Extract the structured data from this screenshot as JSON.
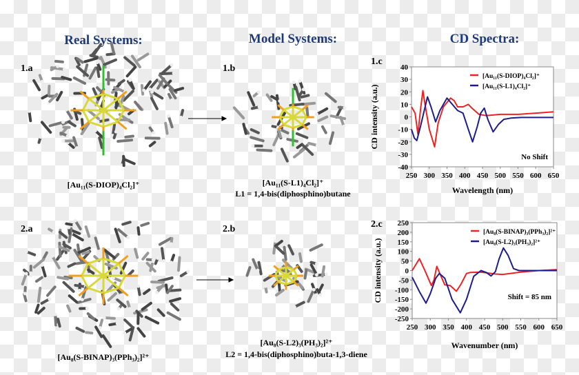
{
  "headings": {
    "real": "Real Systems:",
    "model": "Model Systems:",
    "cd": "CD Spectra:"
  },
  "panels": {
    "p1a": {
      "label": "1.a",
      "caption": "[Au₁₁(S-DIOP)₄Cl₂]⁺"
    },
    "p1b": {
      "label": "1.b",
      "caption": "[Au₁₁(S-L1)₄Cl₂]⁺",
      "caption2": "L1 = 1,4-bis(diphosphino)butane"
    },
    "p1c": {
      "label": "1.c"
    },
    "p2a": {
      "label": "2.a",
      "caption": "[Au₈(S-BINAP)₃(PPh₃)₂]²⁺"
    },
    "p2b": {
      "label": "2.b",
      "caption": "[Au₈(S-L2)₃(PH₃)₂]²⁺",
      "caption2": "L2 = 1,4-bis(diphosphino)buta-1,3-diene"
    },
    "p2c": {
      "label": "2.c"
    }
  },
  "colors": {
    "heading": "#1f3a78",
    "red_series": "#ee2222",
    "blue_series": "#1c1c8c",
    "gold": "#d8d838",
    "phosphorus": "#f0a020",
    "chlorine": "#30c030"
  },
  "chart_data": [
    {
      "type": "line",
      "xlabel": "Wavelength (nm)",
      "ylabel": "CD intensity (a.u.)",
      "xlim": [
        250,
        650
      ],
      "ylim": [
        -40,
        40
      ],
      "xticks": [
        250,
        300,
        350,
        400,
        450,
        500,
        550,
        600,
        650
      ],
      "yticks": [
        -40,
        -30,
        -20,
        -10,
        0,
        10,
        20,
        30,
        40
      ],
      "annotation": "No Shift",
      "legend": "top-right",
      "series": [
        {
          "name": "[Au₁₁(S-DIOP)₄Cl₂]⁺",
          "color": "#ee2222",
          "x": [
            250,
            260,
            268,
            275,
            282,
            288,
            300,
            315,
            325,
            340,
            360,
            370,
            380,
            395,
            410,
            420,
            440,
            460,
            500,
            550,
            600,
            650
          ],
          "y": [
            8,
            3,
            -14,
            5,
            21,
            10,
            -10,
            -24,
            -5,
            8,
            15,
            13,
            8,
            8,
            10,
            7,
            2,
            1,
            2,
            2,
            3,
            4
          ]
        },
        {
          "name": "[Au₁₁(S-L1)₄Cl₂]⁺",
          "color": "#1c1c8c",
          "x": [
            250,
            258,
            265,
            275,
            295,
            305,
            318,
            330,
            350,
            365,
            380,
            395,
            410,
            422,
            435,
            445,
            455,
            465,
            480,
            495,
            510,
            530,
            560,
            650
          ],
          "y": [
            -10,
            -17,
            -19,
            -8,
            16,
            8,
            -4,
            5,
            15,
            10,
            5,
            3,
            -10,
            -20,
            -8,
            3,
            7,
            -2,
            -12,
            -6,
            -2,
            -1,
            -0.5,
            -0.5
          ]
        }
      ]
    },
    {
      "type": "line",
      "xlabel": "Wavenumber (nm)",
      "ylabel": "CD intensity (a.u.)",
      "xlim": [
        250,
        650
      ],
      "ylim": [
        -250,
        250
      ],
      "xticks": [
        250,
        300,
        350,
        400,
        450,
        500,
        550,
        600,
        650
      ],
      "yticks": [
        -250,
        -200,
        -150,
        -100,
        -50,
        0,
        50,
        100,
        150,
        200,
        250
      ],
      "annotation": "Shift = 85 nm",
      "legend": "top-right",
      "series": [
        {
          "name": "[Au₈(S-BINAP)₃(PPh₃)₂]²⁺",
          "color": "#ee2222",
          "x": [
            250,
            270,
            285,
            303,
            310,
            318,
            325,
            340,
            355,
            372,
            385,
            400,
            410,
            440,
            480,
            500,
            550,
            600,
            650
          ],
          "y": [
            0,
            62,
            0,
            -78,
            -50,
            22,
            -10,
            -75,
            -78,
            -108,
            -70,
            -15,
            -10,
            -8,
            -18,
            -20,
            -8,
            0,
            5
          ]
        },
        {
          "name": "[Au₈(S-L2)₃(PH₃)₂]²⁺",
          "color": "#1c1c8c",
          "x": [
            250,
            270,
            288,
            300,
            315,
            325,
            340,
            360,
            383,
            400,
            420,
            440,
            455,
            468,
            480,
            490,
            502,
            515,
            530,
            545,
            650
          ],
          "y": [
            -35,
            -110,
            -170,
            -120,
            -40,
            -15,
            -40,
            -150,
            -220,
            -150,
            -30,
            0,
            -10,
            -28,
            -5,
            60,
            118,
            80,
            10,
            0,
            0
          ]
        }
      ]
    }
  ]
}
